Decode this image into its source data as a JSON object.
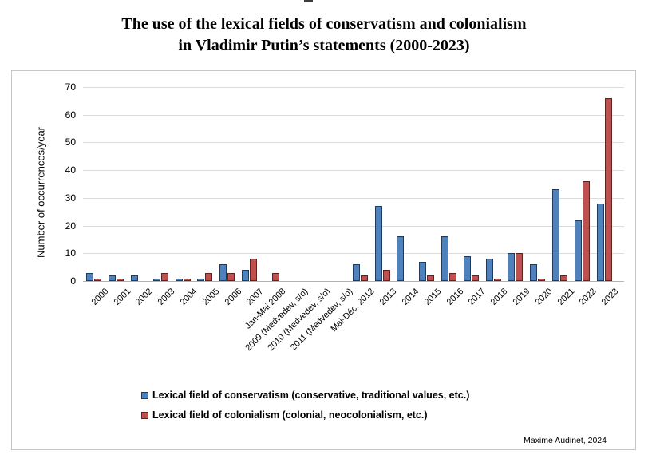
{
  "figure": {
    "title_line1": "The use of the lexical fields of conservatism and colonialism",
    "title_line2": "in Vladimir Putin’s statements (2000-2023)",
    "attribution": "Maxime Audinet, 2024"
  },
  "chart_data": {
    "type": "bar",
    "title": "The use of the lexical fields of conservatism and colonialism in Vladimir Putin’s statements (2000-2023)",
    "xlabel": "",
    "ylabel": "Number of occurrences/year",
    "ylim": [
      0,
      70
    ],
    "yticks": [
      0,
      10,
      20,
      30,
      40,
      50,
      60,
      70
    ],
    "grid": true,
    "legend_position": "bottom-left",
    "categories": [
      "2000",
      "2001",
      "2002",
      "2003",
      "2004",
      "2005",
      "2006",
      "2007",
      "Jan-Mai 2008",
      "2009 (Medvedev, s/o)",
      "2010 (Medvedev, s/o)",
      "2011 (Medvedev, s/o)",
      "Mai-Déc. 2012",
      "2013",
      "2014",
      "2015",
      "2016",
      "2017",
      "2018",
      "2019",
      "2020",
      "2021",
      "2022",
      "2023"
    ],
    "series": [
      {
        "name": "Lexical field of conservatism (conservative, traditional values, etc.)",
        "color": "#4F81BD",
        "border_color": "#1F3A5F",
        "values": [
          3,
          2,
          2,
          1,
          1,
          1,
          6,
          4,
          0,
          0,
          0,
          0,
          6,
          27,
          16,
          7,
          16,
          9,
          8,
          10,
          6,
          33,
          22,
          28
        ]
      },
      {
        "name": "Lexical field of colonialism (colonial, neocolonialism, etc.)",
        "color": "#C0504D",
        "border_color": "#5B2422",
        "values": [
          1,
          1,
          0,
          3,
          1,
          3,
          3,
          8,
          3,
          0,
          0,
          0,
          2,
          4,
          0,
          2,
          3,
          2,
          1,
          10,
          1,
          2,
          36,
          66
        ]
      }
    ]
  }
}
